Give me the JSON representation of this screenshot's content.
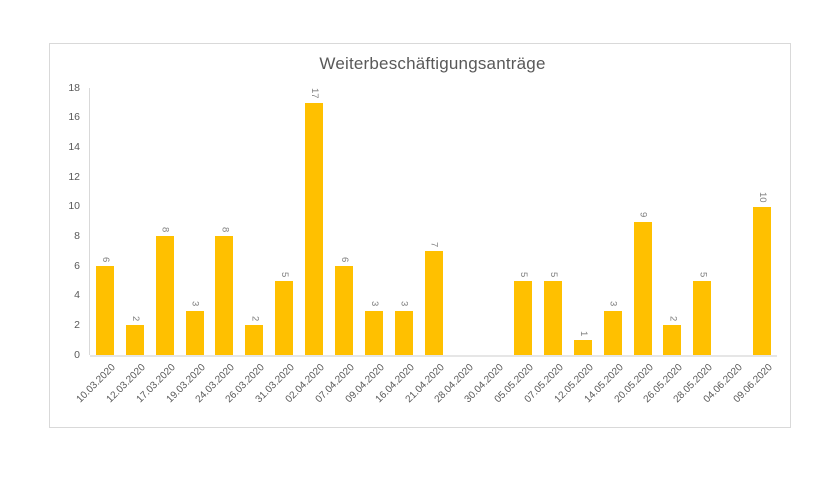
{
  "chart_data": {
    "type": "bar",
    "title": "Weiterbeschäftigungsanträge",
    "categories": [
      "10.03.2020",
      "12.03.2020",
      "17.03.2020",
      "19.03.2020",
      "24.03.2020",
      "26.03.2020",
      "31.03.2020",
      "02.04.2020",
      "07.04.2020",
      "09.04.2020",
      "16.04.2020",
      "21.04.2020",
      "28.04.2020",
      "30.04.2020",
      "05.05.2020",
      "07.05.2020",
      "12.05.2020",
      "14.05.2020",
      "20.05.2020",
      "26.05.2020",
      "28.05.2020",
      "04.06.2020",
      "09.06.2020"
    ],
    "values": [
      6,
      2,
      8,
      3,
      8,
      2,
      5,
      17,
      6,
      3,
      3,
      7,
      0,
      0,
      5,
      5,
      1,
      3,
      9,
      2,
      5,
      0,
      10
    ],
    "xlabel": "",
    "ylabel": "",
    "ylim": [
      0,
      18
    ],
    "ytick_step": 2,
    "yticks": [
      0,
      2,
      4,
      6,
      8,
      10,
      12,
      14,
      16,
      18
    ],
    "grid": false,
    "legend_position": "none",
    "data_labels": "rotated-90-above-bars",
    "xtick_rotation_deg": 45,
    "bar_color": "#ffc000",
    "title_color": "#595959",
    "axis_text_color": "#595959",
    "data_label_color": "#7f7f7f",
    "axis_line_color": "#d9d9d9",
    "frame_border_color": "#d9d9d9",
    "background_color": "#ffffff"
  }
}
